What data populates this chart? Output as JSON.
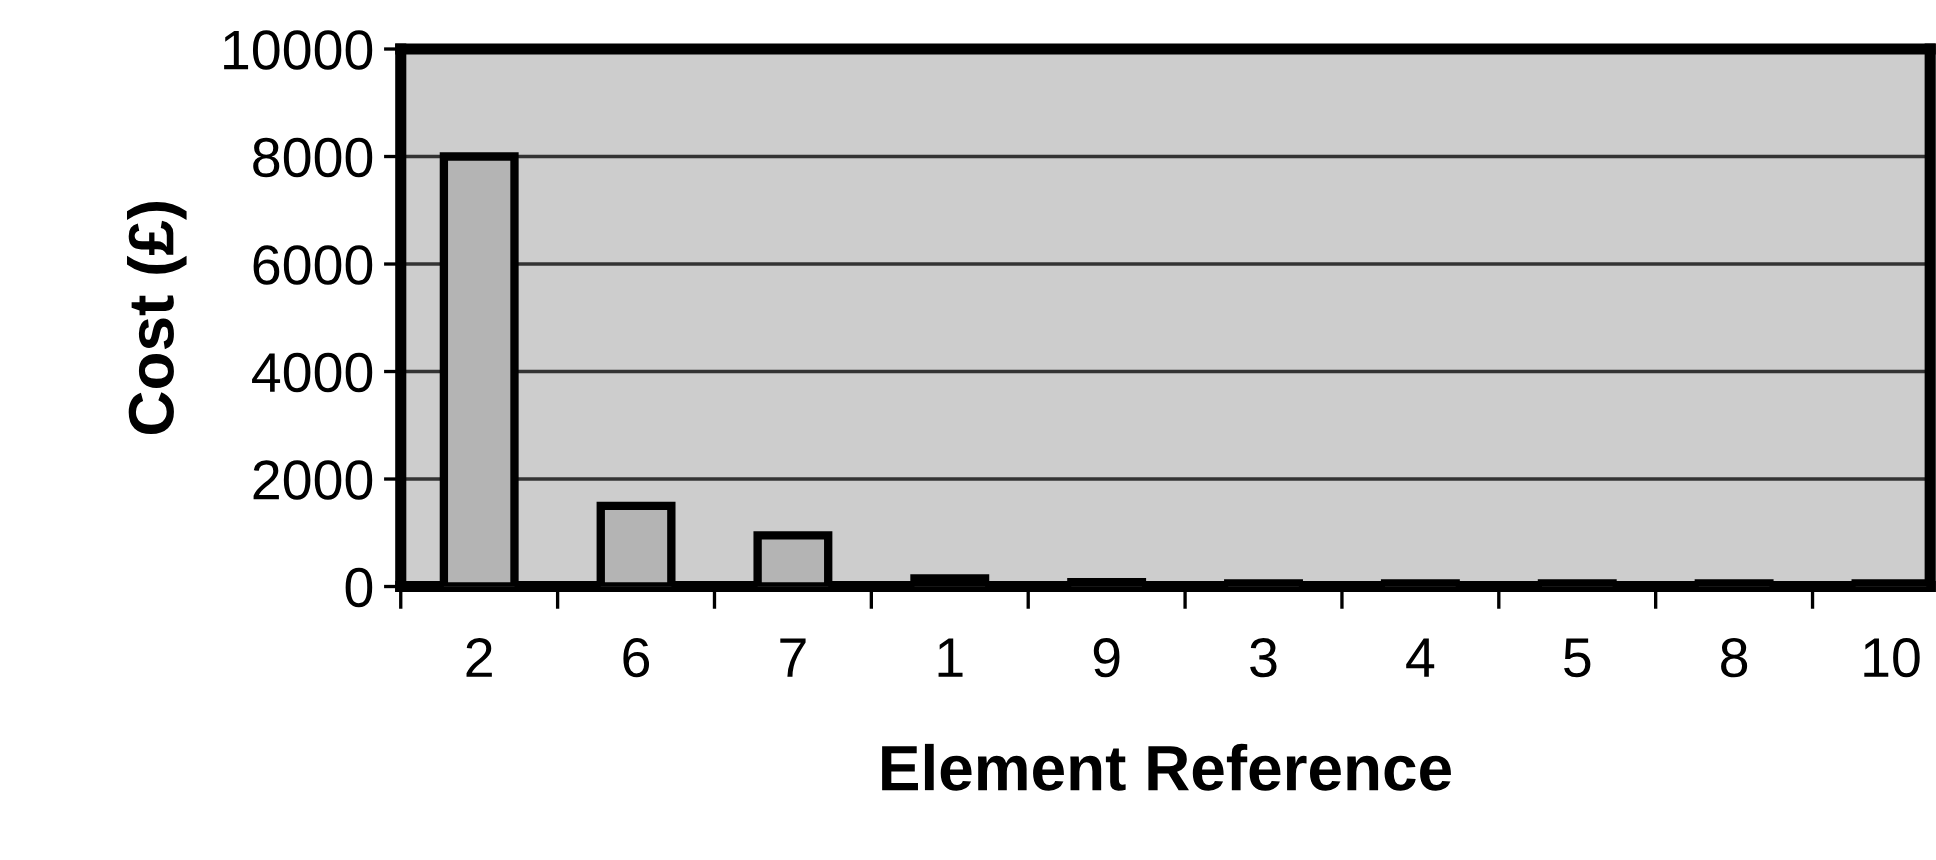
{
  "chart_data": {
    "type": "bar",
    "xlabel": "Element Reference",
    "ylabel": "Cost (£)",
    "categories": [
      "2",
      "6",
      "7",
      "1",
      "9",
      "3",
      "4",
      "5",
      "8",
      "10"
    ],
    "values": [
      8000,
      1500,
      950,
      150,
      80,
      60,
      60,
      60,
      60,
      60
    ],
    "color": "#b4b4b4",
    "ylim": [
      0,
      10000
    ],
    "yticks": [
      0,
      2000,
      4000,
      6000,
      8000,
      10000
    ],
    "grid": "y",
    "legend": false
  }
}
